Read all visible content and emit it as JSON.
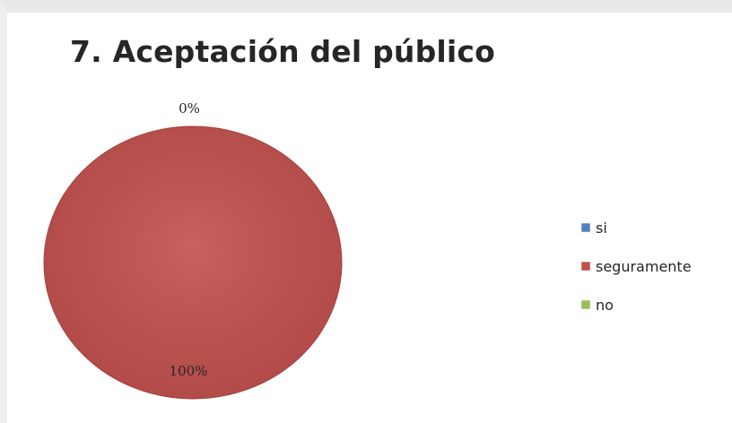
{
  "chart_data": {
    "type": "pie",
    "title": "7. Aceptación del público",
    "categories": [
      "si",
      "seguramente",
      "no"
    ],
    "values": [
      0,
      100,
      0
    ],
    "data_labels": [
      "0%",
      "100%",
      ""
    ],
    "colors": [
      "#4f81bd",
      "#c0504d",
      "#9bbb59"
    ],
    "legend": {
      "position": "right",
      "entries": [
        "si",
        "seguramente",
        "no"
      ]
    }
  }
}
